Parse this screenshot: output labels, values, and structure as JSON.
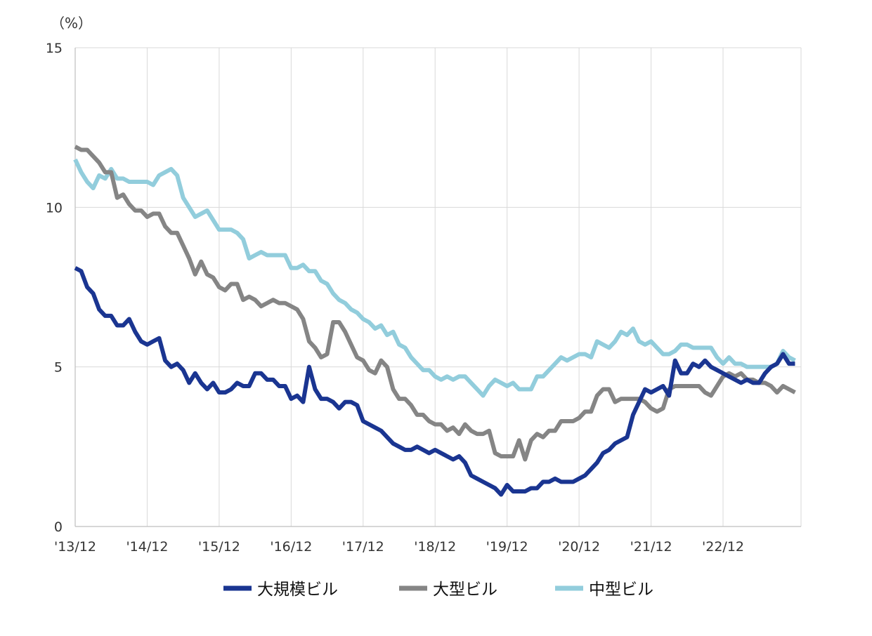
{
  "chart_data": {
    "type": "line",
    "unit_label": "（%）",
    "ylim": [
      0,
      15
    ],
    "y_ticks": [
      "0",
      "5",
      "10",
      "15"
    ],
    "x_range": [
      0,
      121
    ],
    "x_ticks": [
      "'13/12",
      "'14/12",
      "'15/12",
      "'16/12",
      "'17/12",
      "'18/12",
      "'19/12",
      "'20/12",
      "'21/12",
      "'22/12"
    ],
    "grid": true,
    "legend_position": "bottom",
    "series": [
      {
        "name": "大規模ビル",
        "color": "#1a3591",
        "values": [
          8.1,
          8.0,
          7.5,
          7.3,
          6.8,
          6.6,
          6.6,
          6.3,
          6.3,
          6.5,
          6.1,
          5.8,
          5.7,
          5.8,
          5.9,
          5.2,
          5.0,
          5.1,
          4.9,
          4.5,
          4.8,
          4.5,
          4.3,
          4.5,
          4.2,
          4.2,
          4.3,
          4.5,
          4.4,
          4.4,
          4.8,
          4.8,
          4.6,
          4.6,
          4.4,
          4.4,
          4.0,
          4.1,
          3.9,
          5.0,
          4.3,
          4.0,
          4.0,
          3.9,
          3.7,
          3.9,
          3.9,
          3.8,
          3.3,
          3.2,
          3.1,
          3.0,
          2.8,
          2.6,
          2.5,
          2.4,
          2.4,
          2.5,
          2.4,
          2.3,
          2.4,
          2.3,
          2.2,
          2.1,
          2.2,
          2.0,
          1.6,
          1.5,
          1.4,
          1.3,
          1.2,
          1.0,
          1.3,
          1.1,
          1.1,
          1.1,
          1.2,
          1.2,
          1.4,
          1.4,
          1.5,
          1.4,
          1.4,
          1.4,
          1.5,
          1.6,
          1.8,
          2.0,
          2.3,
          2.4,
          2.6,
          2.7,
          2.8,
          3.5,
          3.9,
          4.3,
          4.2,
          4.3,
          4.4,
          4.1,
          5.2,
          4.8,
          4.8,
          5.1,
          5.0,
          5.2,
          5.0,
          4.9,
          4.8,
          4.7,
          4.6,
          4.5,
          4.6,
          4.5,
          4.5,
          4.8,
          5.0,
          5.1,
          5.4,
          5.1,
          5.1
        ]
      },
      {
        "name": "大型ビル",
        "color": "#858585",
        "values": [
          11.9,
          11.8,
          11.8,
          11.6,
          11.4,
          11.1,
          11.1,
          10.3,
          10.4,
          10.1,
          9.9,
          9.9,
          9.7,
          9.8,
          9.8,
          9.4,
          9.2,
          9.2,
          8.8,
          8.4,
          7.9,
          8.3,
          7.9,
          7.8,
          7.5,
          7.4,
          7.6,
          7.6,
          7.1,
          7.2,
          7.1,
          6.9,
          7.0,
          7.1,
          7.0,
          7.0,
          6.9,
          6.8,
          6.5,
          5.8,
          5.6,
          5.3,
          5.4,
          6.4,
          6.4,
          6.1,
          5.7,
          5.3,
          5.2,
          4.9,
          4.8,
          5.2,
          5.0,
          4.3,
          4.0,
          4.0,
          3.8,
          3.5,
          3.5,
          3.3,
          3.2,
          3.2,
          3.0,
          3.1,
          2.9,
          3.2,
          3.0,
          2.9,
          2.9,
          3.0,
          2.3,
          2.2,
          2.2,
          2.2,
          2.7,
          2.1,
          2.7,
          2.9,
          2.8,
          3.0,
          3.0,
          3.3,
          3.3,
          3.3,
          3.4,
          3.6,
          3.6,
          4.1,
          4.3,
          4.3,
          3.9,
          4.0,
          4.0,
          4.0,
          4.0,
          3.9,
          3.7,
          3.6,
          3.7,
          4.3,
          4.4,
          4.4,
          4.4,
          4.4,
          4.4,
          4.2,
          4.1,
          4.4,
          4.7,
          4.8,
          4.7,
          4.8,
          4.6,
          4.6,
          4.5,
          4.5,
          4.4,
          4.2,
          4.4,
          4.3,
          4.2
        ]
      },
      {
        "name": "中型ビル",
        "color": "#92cddc",
        "values": [
          11.5,
          11.1,
          10.8,
          10.6,
          11.0,
          10.9,
          11.2,
          10.9,
          10.9,
          10.8,
          10.8,
          10.8,
          10.8,
          10.7,
          11.0,
          11.1,
          11.2,
          11.0,
          10.3,
          10.0,
          9.7,
          9.8,
          9.9,
          9.6,
          9.3,
          9.3,
          9.3,
          9.2,
          9.0,
          8.4,
          8.5,
          8.6,
          8.5,
          8.5,
          8.5,
          8.5,
          8.1,
          8.1,
          8.2,
          8.0,
          8.0,
          7.7,
          7.6,
          7.3,
          7.1,
          7.0,
          6.8,
          6.7,
          6.5,
          6.4,
          6.2,
          6.3,
          6.0,
          6.1,
          5.7,
          5.6,
          5.3,
          5.1,
          4.9,
          4.9,
          4.7,
          4.6,
          4.7,
          4.6,
          4.7,
          4.7,
          4.5,
          4.3,
          4.1,
          4.4,
          4.6,
          4.5,
          4.4,
          4.5,
          4.3,
          4.3,
          4.3,
          4.7,
          4.7,
          4.9,
          5.1,
          5.3,
          5.2,
          5.3,
          5.4,
          5.4,
          5.3,
          5.8,
          5.7,
          5.6,
          5.8,
          6.1,
          6.0,
          6.2,
          5.8,
          5.7,
          5.8,
          5.6,
          5.4,
          5.4,
          5.5,
          5.7,
          5.7,
          5.6,
          5.6,
          5.6,
          5.6,
          5.3,
          5.1,
          5.3,
          5.1,
          5.1,
          5.0,
          5.0,
          5.0,
          5.0,
          5.0,
          5.1,
          5.5,
          5.3,
          5.2
        ]
      }
    ]
  }
}
